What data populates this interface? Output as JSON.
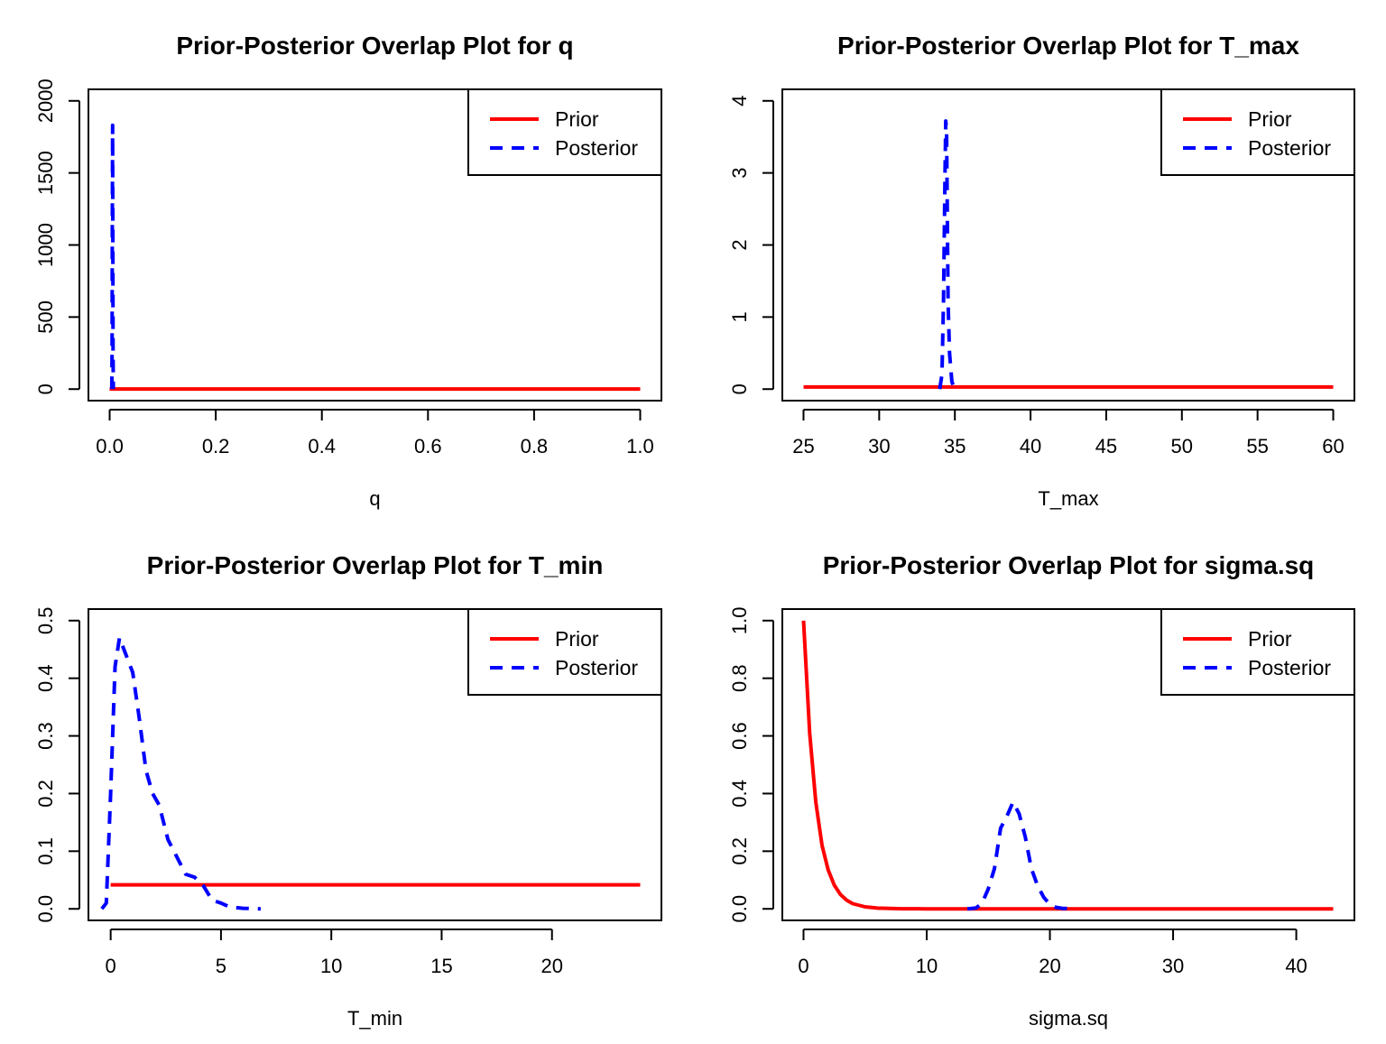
{
  "chart_data": [
    {
      "type": "line",
      "title": "Prior-Posterior Overlap Plot for q",
      "xlabel": "q",
      "ylabel": "",
      "xlim": [
        0,
        1
      ],
      "ylim": [
        0,
        2000
      ],
      "xticks": [
        0,
        0.2,
        0.4,
        0.6,
        0.8,
        1.0
      ],
      "xtick_labels": [
        "0.0",
        "0.2",
        "0.4",
        "0.6",
        "0.8",
        "1.0"
      ],
      "yticks": [
        0,
        500,
        1000,
        1500,
        2000
      ],
      "ytick_labels": [
        "0",
        "500",
        "1000",
        "1500",
        "2000"
      ],
      "legend": {
        "position": "top-right",
        "entries": [
          "Prior",
          "Posterior"
        ]
      },
      "series": [
        {
          "name": "Prior",
          "color": "#ff0000",
          "style": "solid",
          "x": [
            0,
            1
          ],
          "y": [
            1,
            1
          ]
        },
        {
          "name": "Posterior",
          "color": "#0000ff",
          "style": "dashed",
          "x": [
            0.004,
            0.0045,
            0.005,
            0.0055,
            0.006,
            0.0065,
            0.007
          ],
          "y": [
            0,
            250,
            1200,
            1830,
            1200,
            250,
            0
          ]
        }
      ]
    },
    {
      "type": "line",
      "title": "Prior-Posterior Overlap Plot for T_max",
      "xlabel": "T_max",
      "ylabel": "",
      "xlim": [
        25,
        60
      ],
      "ylim": [
        0,
        4
      ],
      "xticks": [
        25,
        30,
        35,
        40,
        45,
        50,
        55,
        60
      ],
      "xtick_labels": [
        "25",
        "30",
        "35",
        "40",
        "45",
        "50",
        "55",
        "60"
      ],
      "yticks": [
        0,
        1,
        2,
        3,
        4
      ],
      "ytick_labels": [
        "0",
        "1",
        "2",
        "3",
        "4"
      ],
      "legend": {
        "position": "top-right",
        "entries": [
          "Prior",
          "Posterior"
        ]
      },
      "series": [
        {
          "name": "Prior",
          "color": "#ff0000",
          "style": "solid",
          "x": [
            25,
            60
          ],
          "y": [
            0.029,
            0.029
          ]
        },
        {
          "name": "Posterior",
          "color": "#0000ff",
          "style": "dashed",
          "x": [
            34.0,
            34.15,
            34.25,
            34.35,
            34.4,
            34.45,
            34.5,
            34.55,
            34.65,
            34.8,
            35.0
          ],
          "y": [
            0,
            0.2,
            1.2,
            3.0,
            3.72,
            3.6,
            2.5,
            1.2,
            0.5,
            0.1,
            0
          ]
        }
      ]
    },
    {
      "type": "line",
      "title": "Prior-Posterior Overlap Plot for T_min",
      "xlabel": "T_min",
      "ylabel": "",
      "xlim": [
        0,
        24
      ],
      "ylim": [
        0,
        0.5
      ],
      "xticks": [
        0,
        5,
        10,
        15,
        20
      ],
      "xtick_labels": [
        "0",
        "5",
        "10",
        "15",
        "20"
      ],
      "yticks": [
        0,
        0.1,
        0.2,
        0.3,
        0.4,
        0.5
      ],
      "ytick_labels": [
        "0.0",
        "0.1",
        "0.2",
        "0.3",
        "0.4",
        "0.5"
      ],
      "legend": {
        "position": "top-right",
        "entries": [
          "Prior",
          "Posterior"
        ]
      },
      "series": [
        {
          "name": "Prior",
          "color": "#ff0000",
          "style": "solid",
          "x": [
            0,
            24
          ],
          "y": [
            0.0417,
            0.0417
          ]
        },
        {
          "name": "Posterior",
          "color": "#0000ff",
          "style": "dashed",
          "x": [
            -0.4,
            -0.2,
            0.0,
            0.2,
            0.4,
            0.7,
            1.0,
            1.3,
            1.6,
            1.9,
            2.2,
            2.6,
            3.0,
            3.4,
            3.8,
            4.2,
            4.6,
            5.0,
            5.4,
            6.0,
            6.8
          ],
          "y": [
            0.0,
            0.01,
            0.2,
            0.42,
            0.47,
            0.44,
            0.41,
            0.33,
            0.24,
            0.2,
            0.18,
            0.12,
            0.09,
            0.06,
            0.055,
            0.04,
            0.015,
            0.01,
            0.003,
            0.001,
            0.0
          ]
        }
      ]
    },
    {
      "type": "line",
      "title": "Prior-Posterior Overlap Plot for sigma.sq",
      "xlabel": "sigma.sq",
      "ylabel": "",
      "xlim": [
        0,
        43
      ],
      "ylim": [
        0,
        1.0
      ],
      "xticks": [
        0,
        10,
        20,
        30,
        40
      ],
      "xtick_labels": [
        "0",
        "10",
        "20",
        "30",
        "40"
      ],
      "yticks": [
        0,
        0.2,
        0.4,
        0.6,
        0.8,
        1.0
      ],
      "ytick_labels": [
        "0.0",
        "0.2",
        "0.4",
        "0.6",
        "0.8",
        "1.0"
      ],
      "legend": {
        "position": "top-right",
        "entries": [
          "Prior",
          "Posterior"
        ]
      },
      "series": [
        {
          "name": "Prior",
          "color": "#ff0000",
          "style": "solid",
          "x": [
            0,
            0.5,
            1.0,
            1.5,
            2.0,
            2.5,
            3.0,
            3.5,
            4.0,
            5.0,
            6.0,
            8.0,
            10.0,
            15.0,
            20.0,
            30.0,
            43.0
          ],
          "y": [
            1.0,
            0.61,
            0.37,
            0.22,
            0.135,
            0.082,
            0.05,
            0.03,
            0.018,
            0.007,
            0.0025,
            0.0003,
            0.0,
            0.0,
            0.0,
            0.0,
            0.0
          ]
        },
        {
          "name": "Posterior",
          "color": "#0000ff",
          "style": "dashed",
          "x": [
            13.3,
            14.0,
            14.5,
            15.0,
            15.5,
            16.0,
            16.5,
            17.0,
            17.5,
            18.0,
            18.5,
            19.0,
            19.5,
            20.0,
            20.5,
            21.0,
            22.0
          ],
          "y": [
            0.0,
            0.003,
            0.02,
            0.07,
            0.14,
            0.28,
            0.32,
            0.37,
            0.33,
            0.25,
            0.14,
            0.08,
            0.04,
            0.015,
            0.005,
            0.002,
            0.0
          ]
        }
      ]
    }
  ]
}
